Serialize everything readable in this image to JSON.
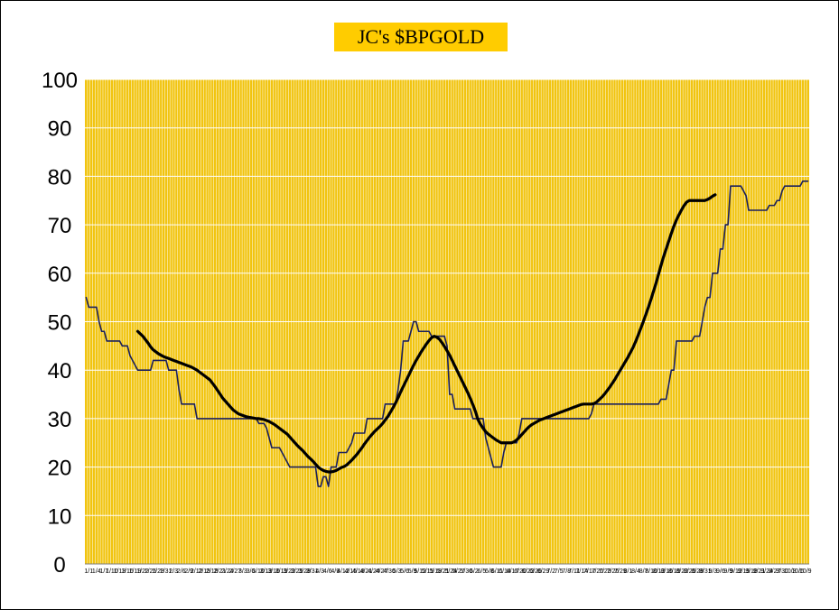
{
  "chart_data": {
    "type": "line",
    "title": "JC's $BPGOLD",
    "xlabel": "",
    "ylabel": "",
    "ylim": [
      0,
      100
    ],
    "yticks": [
      "0",
      "10",
      "20",
      "30",
      "40",
      "50",
      "60",
      "70",
      "80",
      "90",
      "100"
    ],
    "grid": true,
    "colors": {
      "plot_bg": "#F1C40F",
      "grid": "#FFFFFF",
      "raw_line": "#1A1F5C",
      "avg_line": "#000000",
      "title_bg": "#FFCC00"
    },
    "x_tick_labels": [
      "1/1",
      "1/4",
      "1/7",
      "1/10",
      "1/13",
      "1/16",
      "1/19",
      "1/22",
      "1/25",
      "1/28",
      "1/31",
      "2/3",
      "2/6",
      "2/9",
      "2/12",
      "2/15",
      "2/18",
      "2/21",
      "2/24",
      "2/27",
      "3/3",
      "3/6",
      "3/10",
      "3/13",
      "3/16",
      "3/19",
      "3/22",
      "3/25",
      "3/28",
      "3/31",
      "4/3",
      "4/6",
      "4/9",
      "4/12",
      "4/15",
      "4/18",
      "4/21",
      "4/24",
      "4/27",
      "4/30",
      "5/3",
      "5/6",
      "5/9",
      "5/12",
      "5/15",
      "5/18",
      "5/21",
      "5/24",
      "5/27",
      "5/30",
      "6/2",
      "6/5",
      "6/8",
      "6/11",
      "6/14",
      "6/17",
      "6/20",
      "6/23",
      "6/26",
      "6/29",
      "7/2",
      "7/5",
      "7/8",
      "7/11",
      "7/14",
      "7/17",
      "7/20",
      "7/23",
      "7/26",
      "7/29",
      "8/1",
      "8/4",
      "8/7",
      "8/10",
      "8/13",
      "8/16",
      "8/19",
      "8/22",
      "8/25",
      "8/28",
      "8/31",
      "9/3",
      "9/6",
      "9/9",
      "9/12",
      "9/15",
      "9/18",
      "9/21",
      "9/24",
      "9/27",
      "9/30",
      "10/3",
      "10/6",
      "10/9"
    ],
    "series": [
      {
        "values": [
          55,
          53,
          53,
          53,
          53,
          50,
          48,
          48,
          46,
          46,
          46,
          46,
          46,
          46,
          45,
          45,
          45,
          43,
          42,
          41,
          40,
          40,
          40,
          40,
          40,
          40,
          42,
          42,
          42,
          42,
          42,
          42,
          40,
          40,
          40,
          40,
          36,
          33,
          33,
          33,
          33,
          33,
          33,
          30,
          30,
          30,
          30,
          30,
          30,
          30,
          30,
          30,
          30,
          30,
          30,
          30,
          30,
          30,
          30,
          30,
          30,
          30,
          30,
          30,
          30,
          30,
          30,
          29,
          29,
          29,
          28,
          26,
          24,
          24,
          24,
          24,
          23,
          22,
          21,
          20,
          20,
          20,
          20,
          20,
          20,
          20,
          20,
          20,
          20,
          20,
          16,
          16,
          18,
          18,
          16,
          20,
          20,
          20,
          23,
          23,
          23,
          23,
          24,
          25,
          27,
          27,
          27,
          27,
          27,
          30,
          30,
          30,
          30,
          30,
          30,
          30,
          33,
          33,
          33,
          33,
          33,
          36,
          40,
          46,
          46,
          46,
          48,
          50,
          50,
          48,
          48,
          48,
          48,
          48,
          47,
          47,
          47,
          47,
          47,
          47,
          45,
          35,
          35,
          32,
          32,
          32,
          32,
          32,
          32,
          32,
          30,
          30,
          30,
          30,
          30,
          26,
          24,
          22,
          20,
          20,
          20,
          20,
          23,
          25,
          25,
          25,
          25,
          25,
          27,
          30,
          30,
          30,
          30,
          30,
          30,
          30,
          30,
          30,
          30,
          30,
          30,
          30,
          30,
          30,
          30,
          30,
          30,
          30,
          30,
          30,
          30,
          30,
          30,
          30,
          30,
          30,
          31,
          33,
          33,
          33,
          33,
          33,
          33,
          33,
          33,
          33,
          33,
          33,
          33,
          33,
          33,
          33,
          33,
          33,
          33,
          33,
          33,
          33,
          33,
          33,
          33,
          33,
          33,
          34,
          34,
          34,
          37,
          40,
          40,
          46,
          46,
          46,
          46,
          46,
          46,
          46,
          47,
          47,
          47,
          50,
          53,
          55,
          55,
          60,
          60,
          60,
          65,
          65,
          70,
          70,
          78,
          78,
          78,
          78,
          78,
          77,
          76,
          73,
          73,
          73,
          73,
          73,
          73,
          73,
          73,
          74,
          74,
          74,
          75,
          75,
          77,
          78,
          78,
          78,
          78,
          78,
          78,
          78,
          79,
          79,
          79
        ]
      },
      {
        "start_index": 20,
        "values": [
          48,
          47.5,
          47,
          46.3,
          45.6,
          44.8,
          44.2,
          43.8,
          43.4,
          43.1,
          42.8,
          42.6,
          42.4,
          42.2,
          42,
          41.8,
          41.6,
          41.4,
          41.2,
          41,
          40.8,
          40.6,
          40.3,
          40,
          39.6,
          39.2,
          38.8,
          38.4,
          38,
          37.3,
          36.6,
          35.8,
          35,
          34.2,
          33.6,
          33,
          32.4,
          31.8,
          31.4,
          31,
          30.8,
          30.6,
          30.4,
          30.3,
          30.2,
          30.1,
          30,
          30,
          29.9,
          29.8,
          29.6,
          29.4,
          29.1,
          28.8,
          28.4,
          28,
          27.6,
          27.2,
          26.8,
          26.2,
          25.6,
          25,
          24.4,
          23.9,
          23.4,
          22.8,
          22.2,
          21.7,
          21.2,
          20.6,
          20,
          19.6,
          19.3,
          19.1,
          19,
          19,
          19.1,
          19.3,
          19.6,
          19.9,
          20.1,
          20.4,
          20.9,
          21.4,
          22,
          22.6,
          23.3,
          24,
          24.8,
          25.5,
          26.2,
          26.8,
          27.4,
          27.9,
          28.4,
          29,
          29.7,
          30.4,
          31.3,
          32.2,
          33.2,
          34.3,
          35.5,
          36.6,
          37.7,
          38.8,
          39.9,
          41,
          42,
          42.9,
          43.8,
          44.6,
          45.4,
          46.1,
          46.7,
          47,
          46.8,
          46.4,
          45.7,
          44.9,
          44,
          43.1,
          42,
          40.9,
          39.8,
          38.7,
          37.6,
          36.5,
          35.4,
          34.2,
          32.9,
          31.5,
          29.8,
          28.8,
          28,
          27.3,
          26.8,
          26.4,
          26,
          25.6,
          25.3,
          25,
          25,
          25,
          25,
          25,
          25.2,
          25.6,
          26.1,
          26.7,
          27.3,
          27.9,
          28.4,
          28.8,
          29.1,
          29.4,
          29.7,
          29.9,
          30.1,
          30.3,
          30.5,
          30.7,
          30.9,
          31.1,
          31.3,
          31.5,
          31.7,
          31.9,
          32.1,
          32.3,
          32.5,
          32.7,
          32.9,
          33,
          33,
          33,
          33,
          33.1,
          33.4,
          33.9,
          34.4,
          35,
          35.7,
          36.4,
          37.2,
          38,
          38.9,
          39.8,
          40.7,
          41.6,
          42.5,
          43.5,
          44.5,
          45.7,
          47,
          48.4,
          49.8,
          51.3,
          52.8,
          54.4,
          56.1,
          57.8,
          59.7,
          61.6,
          63.4,
          65,
          66.6,
          68.2,
          69.7,
          71,
          72.1,
          73.1,
          74,
          74.7,
          75,
          75,
          75,
          75,
          75,
          75,
          75,
          75.2,
          75.5,
          75.9,
          76.2
        ]
      }
    ]
  }
}
